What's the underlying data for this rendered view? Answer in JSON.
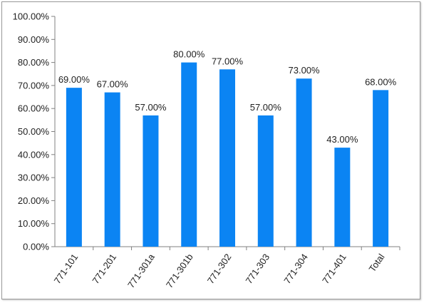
{
  "chart_data": {
    "type": "bar",
    "title": "",
    "xlabel": "",
    "ylabel": "",
    "categories": [
      "771-101",
      "771-201",
      "771-301a",
      "771-301b",
      "771-302",
      "771-303",
      "771-304",
      "771-401",
      "Total"
    ],
    "values": [
      69.0,
      67.0,
      57.0,
      80.0,
      77.0,
      57.0,
      73.0,
      43.0,
      68.0
    ],
    "data_labels": [
      "69.00%",
      "67.00%",
      "57.00%",
      "80.00%",
      "77.00%",
      "57.00%",
      "73.00%",
      "43.00%",
      "68.00%"
    ],
    "ylim": [
      0,
      100
    ],
    "yticks": [
      0,
      10,
      20,
      30,
      40,
      50,
      60,
      70,
      80,
      90,
      100
    ],
    "ytick_labels": [
      "0.00%",
      "10.00%",
      "20.00%",
      "30.00%",
      "40.00%",
      "50.00%",
      "60.00%",
      "70.00%",
      "80.00%",
      "90.00%",
      "100.00%"
    ],
    "grid": false,
    "legend": false,
    "bar_color": "#0b84f3",
    "axis_color": "#808080"
  }
}
